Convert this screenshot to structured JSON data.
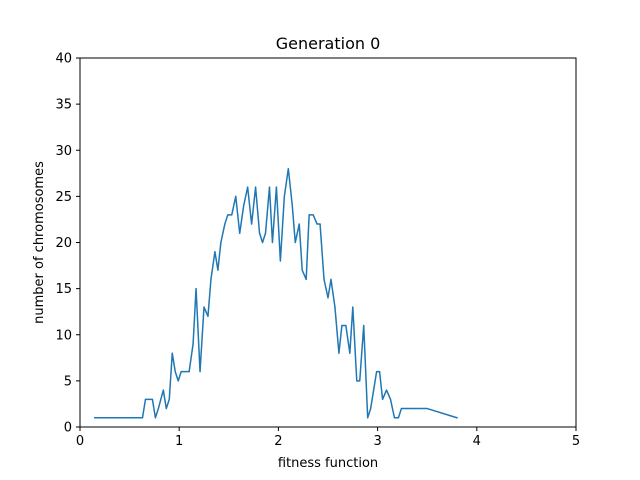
{
  "chart_data": {
    "type": "line",
    "title": "Generation 0",
    "xlabel": "fitness function",
    "ylabel": "number of chromosomes",
    "xlim": [
      0,
      5
    ],
    "ylim": [
      0,
      40
    ],
    "xticks": [
      0,
      1,
      2,
      3,
      4,
      5
    ],
    "yticks": [
      0,
      5,
      10,
      15,
      20,
      25,
      30,
      35,
      40
    ],
    "grid": false,
    "colors": {
      "line": "#1f77b4"
    },
    "series": [
      {
        "x": [
          0.15,
          0.63,
          0.66,
          0.73,
          0.76,
          0.79,
          0.84,
          0.87,
          0.9,
          0.93,
          0.96,
          0.99,
          1.02,
          1.05,
          1.1,
          1.14,
          1.17,
          1.21,
          1.25,
          1.29,
          1.32,
          1.36,
          1.39,
          1.42,
          1.46,
          1.49,
          1.53,
          1.57,
          1.61,
          1.65,
          1.69,
          1.73,
          1.77,
          1.81,
          1.84,
          1.87,
          1.91,
          1.94,
          1.98,
          2.02,
          2.06,
          2.1,
          2.14,
          2.17,
          2.21,
          2.24,
          2.28,
          2.31,
          2.35,
          2.39,
          2.42,
          2.46,
          2.5,
          2.53,
          2.57,
          2.61,
          2.64,
          2.68,
          2.72,
          2.75,
          2.79,
          2.82,
          2.86,
          2.9,
          2.93,
          2.96,
          2.99,
          3.02,
          3.05,
          3.09,
          3.13,
          3.17,
          3.21,
          3.24,
          3.27,
          3.3,
          3.33,
          3.36,
          3.4,
          3.5,
          3.8
        ],
        "values": [
          1,
          1,
          3,
          3,
          1,
          2,
          4,
          2,
          3,
          8,
          6,
          5,
          6,
          6,
          6,
          9,
          15,
          6,
          13,
          12,
          16,
          19,
          17,
          20,
          22,
          23,
          23,
          25,
          21,
          24,
          26,
          22,
          26,
          21,
          20,
          21,
          26,
          20,
          26,
          18,
          25,
          28,
          24,
          20,
          22,
          17,
          16,
          23,
          23,
          22,
          22,
          16,
          14,
          16,
          13,
          8,
          11,
          11,
          8,
          13,
          5,
          5,
          11,
          1,
          2,
          4,
          6,
          6,
          3,
          4,
          3,
          1,
          1,
          2,
          2,
          2,
          2,
          2,
          2,
          2,
          1
        ]
      }
    ]
  }
}
